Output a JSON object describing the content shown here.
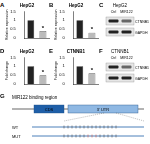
{
  "chart_data": [
    {
      "panel": "A",
      "type": "bar",
      "title": "HepG2",
      "y_label": "Relative expression",
      "categories": [
        null,
        null
      ],
      "values": [
        1,
        0.4
      ],
      "colors": [
        "#222222",
        "#bbbbbb"
      ],
      "ylim": [
        0,
        1.5
      ],
      "yticks": [
        0,
        0.5,
        1,
        1.5
      ],
      "tick_labels": "y",
      "annotation": "*"
    },
    {
      "panel": "B",
      "type": "bar",
      "title": "HepG2",
      "y_label": "Relative expression",
      "categories": [
        null,
        null
      ],
      "values": [
        1,
        0.3
      ],
      "colors": [
        "#222222",
        "#bbbbbb"
      ],
      "ylim": [
        0,
        1.5
      ],
      "yticks": [
        0,
        0.5,
        1,
        1.5
      ],
      "tick_labels": "y",
      "annotation": "*"
    },
    {
      "panel": "D",
      "type": "bar",
      "title": "HepG2",
      "y_label": "Fold change",
      "categories": [
        null,
        null
      ],
      "values": [
        1,
        0.5
      ],
      "colors": [
        "#222222",
        "#bbbbbb"
      ],
      "ylim": [
        0,
        1.5
      ],
      "yticks": [
        0,
        0.5,
        1,
        1.5
      ],
      "tick_labels": "y",
      "annotation": "*"
    },
    {
      "panel": "E",
      "type": "bar",
      "title": "CTNNB1",
      "y_label": "Fold change",
      "categories": [
        null,
        null
      ],
      "values": [
        1,
        0.6
      ],
      "colors": [
        "#222222",
        "#bbbbbb"
      ],
      "ylim": [
        0,
        1.5
      ],
      "yticks": [
        0,
        0.5,
        1,
        1.5
      ],
      "tick_labels": "y",
      "annotation": "*"
    }
  ],
  "blots": [
    {
      "panel": "C",
      "title": "HepG2",
      "lanes": [
        "Ctrl",
        "MIR122"
      ],
      "rows": [
        "CTNNB1",
        "GAPDH"
      ]
    },
    {
      "panel": "F",
      "title": "CTNNB1",
      "lanes": [
        "Ctrl",
        "MIR122"
      ],
      "rows": [
        "CTNNB1",
        "GAPDH"
      ]
    }
  ],
  "diagram": {
    "panel": "G",
    "title": "MIR122 binding region",
    "segments": [
      "CDS",
      "3' UTR"
    ],
    "sequence_labels": [
      "WT",
      "MUT"
    ]
  }
}
